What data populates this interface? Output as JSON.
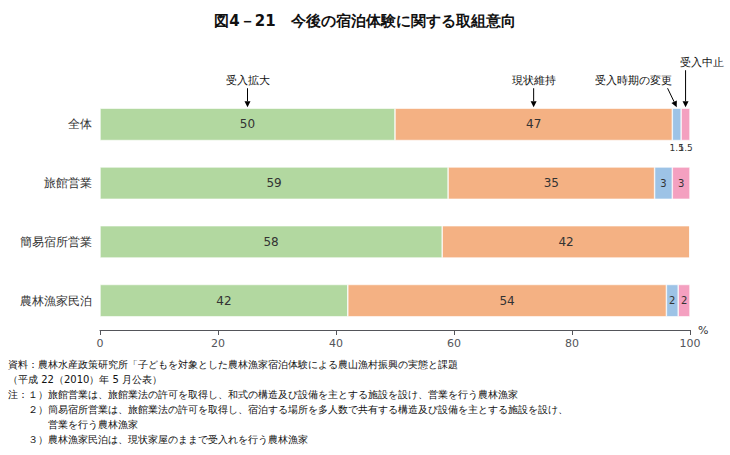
{
  "chart_data": {
    "type": "bar",
    "orientation": "horizontal",
    "stacked": true,
    "title": "図4－21　今後の宿泊体験に関する取組意向",
    "categories": [
      "全体",
      "旅館営業",
      "簡易宿所営業",
      "農林漁家民泊"
    ],
    "series": [
      {
        "name": "受入拡大",
        "color": "#b2d8a0",
        "values": [
          50,
          59,
          58,
          42
        ]
      },
      {
        "name": "現状維持",
        "color": "#f4b183",
        "values": [
          47,
          35,
          42,
          54
        ]
      },
      {
        "name": "受入時期の変更",
        "color": "#9dc3e6",
        "values": [
          1.5,
          3,
          0,
          2
        ]
      },
      {
        "name": "受入中止",
        "color": "#f4a0c0",
        "values": [
          1.5,
          3,
          0,
          2
        ]
      }
    ],
    "xlim": [
      0,
      100
    ],
    "xticks": [
      0,
      20,
      40,
      60,
      80,
      100
    ],
    "xlabel": "%",
    "data_labels": true,
    "grid": false,
    "notes": [
      "資料：農林水産政策研究所「子どもを対象とした農林漁家宿泊体験による農山漁村振興の実態と課題",
      "（平成 22（2010）年 5 月公表）",
      "注：１）旅館営業は、旅館業法の許可を取得し、和式の構造及び設備を主とする施設を設け、営業を行う農林漁家",
      "　　２）簡易宿所営業は、旅館業法の許可を取得し、宿泊する場所を多人数で共有する構造及び設備を主とする施設を設け、",
      "　　　　営業を行う農林漁家",
      "　　３）農林漁家民泊は、現状家屋のままで受入れを行う農林漁家"
    ]
  }
}
